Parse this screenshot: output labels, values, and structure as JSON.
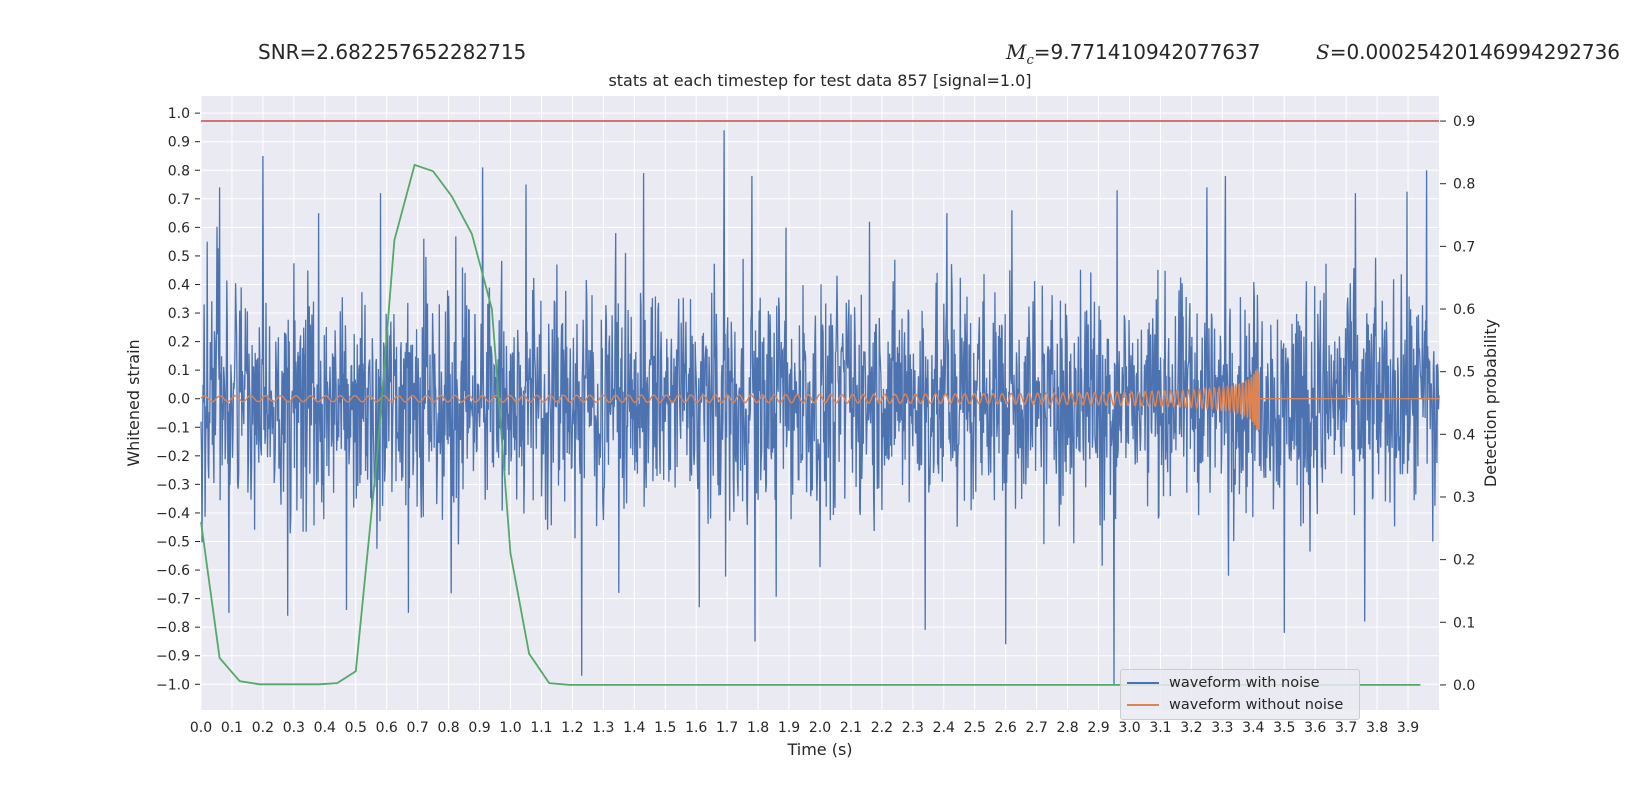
{
  "header": {
    "snr": "SNR=2.682257652282715",
    "mc_value": "=9.771410942077637",
    "s_value": "=0.00025420146994292736"
  },
  "chart_data": {
    "type": "line",
    "title": "stats at each timestep for test data 857 [signal=1.0]",
    "xlabel": "Time (s)",
    "ylabel": "Whitened strain",
    "y2label": "Detection probability",
    "xlim": [
      0.0,
      4.0
    ],
    "ylim": [
      -1.09,
      1.06
    ],
    "y2lim": [
      -0.04,
      0.94
    ],
    "x_ticks": [
      0.0,
      0.1,
      0.2,
      0.3,
      0.4,
      0.5,
      0.6,
      0.7,
      0.8,
      0.9,
      1.0,
      1.1,
      1.2,
      1.3,
      1.4,
      1.5,
      1.6,
      1.7,
      1.8,
      1.9,
      2.0,
      2.1,
      2.2,
      2.3,
      2.4,
      2.5,
      2.6,
      2.7,
      2.8,
      2.9,
      3.0,
      3.1,
      3.2,
      3.3,
      3.4,
      3.5,
      3.6,
      3.7,
      3.8,
      3.9
    ],
    "y_ticks": [
      1.0,
      0.9,
      0.8,
      0.7,
      0.6,
      0.5,
      0.4,
      0.3,
      0.2,
      0.1,
      0.0,
      -0.1,
      -0.2,
      -0.3,
      -0.4,
      -0.5,
      -0.6,
      -0.7,
      -0.8,
      -0.9,
      -1.0
    ],
    "y2_ticks": [
      0.9,
      0.8,
      0.7,
      0.6,
      0.5,
      0.4,
      0.3,
      0.2,
      0.1,
      0.0
    ],
    "threshold": {
      "value": 0.9,
      "color": "#c44e52"
    },
    "series": [
      {
        "name": "waveform with noise",
        "color": "#4c72b0",
        "typical_envelope": 0.3,
        "peaks": [
          {
            "t": 0.02,
            "v": 0.55
          },
          {
            "t": 0.06,
            "v": 0.74
          },
          {
            "t": 0.09,
            "v": -0.75
          },
          {
            "t": 0.2,
            "v": 0.85
          },
          {
            "t": 0.28,
            "v": -0.76
          },
          {
            "t": 0.38,
            "v": 0.65
          },
          {
            "t": 0.47,
            "v": -0.74
          },
          {
            "t": 0.58,
            "v": 0.72
          },
          {
            "t": 0.67,
            "v": -0.75
          },
          {
            "t": 0.72,
            "v": 0.56
          },
          {
            "t": 0.91,
            "v": 0.81
          },
          {
            "t": 1.05,
            "v": 0.75
          },
          {
            "t": 1.15,
            "v": 0.47
          },
          {
            "t": 1.23,
            "v": -0.97
          },
          {
            "t": 1.34,
            "v": 0.58
          },
          {
            "t": 1.35,
            "v": -0.68
          },
          {
            "t": 1.43,
            "v": 0.79
          },
          {
            "t": 1.61,
            "v": -0.73
          },
          {
            "t": 1.69,
            "v": 0.94
          },
          {
            "t": 1.78,
            "v": 0.78
          },
          {
            "t": 1.79,
            "v": -0.85
          },
          {
            "t": 2.0,
            "v": -0.59
          },
          {
            "t": 2.16,
            "v": 0.62
          },
          {
            "t": 2.34,
            "v": -0.81
          },
          {
            "t": 2.41,
            "v": 0.65
          },
          {
            "t": 2.6,
            "v": -0.86
          },
          {
            "t": 2.62,
            "v": 0.66
          },
          {
            "t": 2.96,
            "v": 0.73
          },
          {
            "t": 2.95,
            "v": -1.0
          },
          {
            "t": 3.25,
            "v": 0.74
          },
          {
            "t": 3.31,
            "v": 0.78
          },
          {
            "t": 3.32,
            "v": -0.62
          },
          {
            "t": 3.5,
            "v": -0.82
          },
          {
            "t": 3.73,
            "v": 0.72
          },
          {
            "t": 3.76,
            "v": -0.78
          },
          {
            "t": 3.96,
            "v": 0.8
          },
          {
            "t": 3.98,
            "v": -0.5
          }
        ]
      },
      {
        "name": "waveform without noise",
        "color": "#dd8452",
        "start_amplitude": 0.01,
        "max_amplitude": 0.11,
        "start_frequency_hz": 20,
        "merger_time": 3.42
      },
      {
        "name": "detection probability",
        "axis": "y2",
        "color": "#55a868",
        "x": [
          0.0,
          0.06,
          0.125,
          0.19,
          0.25,
          0.31,
          0.38,
          0.44,
          0.5,
          0.57,
          0.625,
          0.69,
          0.75,
          0.81,
          0.875,
          0.94,
          1.0,
          1.06,
          1.125,
          1.19,
          1.25,
          1.31,
          1.375,
          1.44,
          1.5,
          1.56,
          1.625,
          1.69,
          1.75,
          1.81,
          1.875,
          1.94,
          2.0,
          2.06,
          2.125,
          2.19,
          2.25,
          2.31,
          2.375,
          2.44,
          2.5,
          2.56,
          2.625,
          2.69,
          2.75,
          2.81,
          2.875,
          2.94,
          3.0,
          3.06,
          3.125,
          3.19,
          3.25,
          3.31,
          3.375,
          3.44,
          3.5,
          3.56,
          3.625,
          3.69,
          3.75,
          3.81,
          3.875,
          3.94
        ],
        "values": [
          0.26,
          0.043,
          0.006,
          0.001,
          0.001,
          0.001,
          0.001,
          0.003,
          0.022,
          0.37,
          0.71,
          0.83,
          0.82,
          0.78,
          0.72,
          0.6,
          0.21,
          0.05,
          0.003,
          0.0,
          0.0,
          0.0,
          0.0,
          0.0,
          0.0,
          0.0,
          0.0,
          0.0,
          0.0,
          0.0,
          0.0,
          0.0,
          0.0,
          0.0,
          0.0,
          0.0,
          0.0,
          0.0,
          0.0,
          0.0,
          0.0,
          0.0,
          0.0,
          0.0,
          0.0,
          0.0,
          0.0,
          0.0,
          0.0,
          0.0,
          0.0,
          0.0,
          0.0,
          0.0,
          0.0,
          0.0,
          0.0,
          0.0,
          0.0,
          0.0,
          0.0,
          0.0,
          0.0,
          0.0
        ]
      }
    ],
    "legend": [
      "waveform with noise",
      "waveform without noise"
    ]
  }
}
